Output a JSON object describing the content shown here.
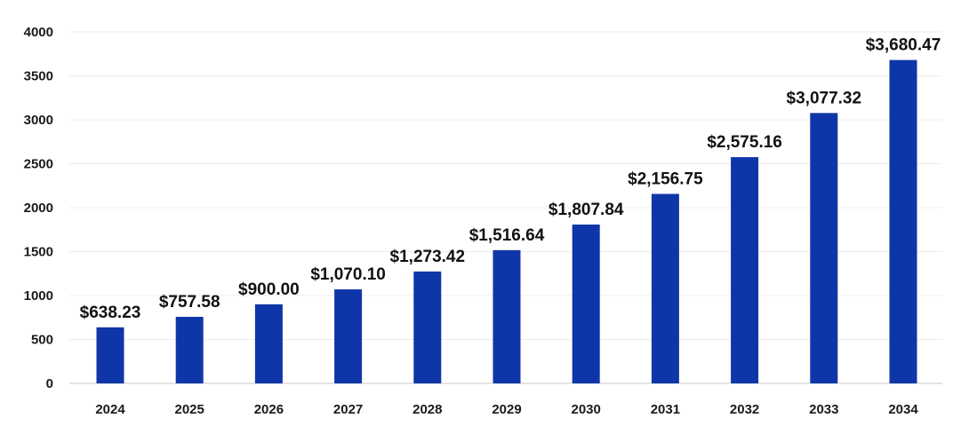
{
  "chart_data": {
    "type": "bar",
    "categories": [
      "2024",
      "2025",
      "2026",
      "2027",
      "2028",
      "2029",
      "2030",
      "2031",
      "2032",
      "2033",
      "2034"
    ],
    "values": [
      638.23,
      757.58,
      900.0,
      1070.1,
      1273.42,
      1516.64,
      1807.84,
      2156.75,
      2575.16,
      3077.32,
      3680.47
    ],
    "data_labels": [
      "$638.23",
      "$757.58",
      "$900.00",
      "$1,070.10",
      "$1,273.42",
      "$1,516.64",
      "$1,807.84",
      "$2,156.75",
      "$2,575.16",
      "$3,077.32",
      "$3,680.47"
    ],
    "title": "",
    "xlabel": "",
    "ylabel": "",
    "ylim": [
      0,
      4000
    ],
    "yticks": [
      "0",
      "500",
      "1000",
      "1500",
      "2000",
      "2500",
      "3000",
      "3500",
      "4000"
    ],
    "grid": true,
    "legend": "none",
    "bar_color": "#0f36a8"
  }
}
